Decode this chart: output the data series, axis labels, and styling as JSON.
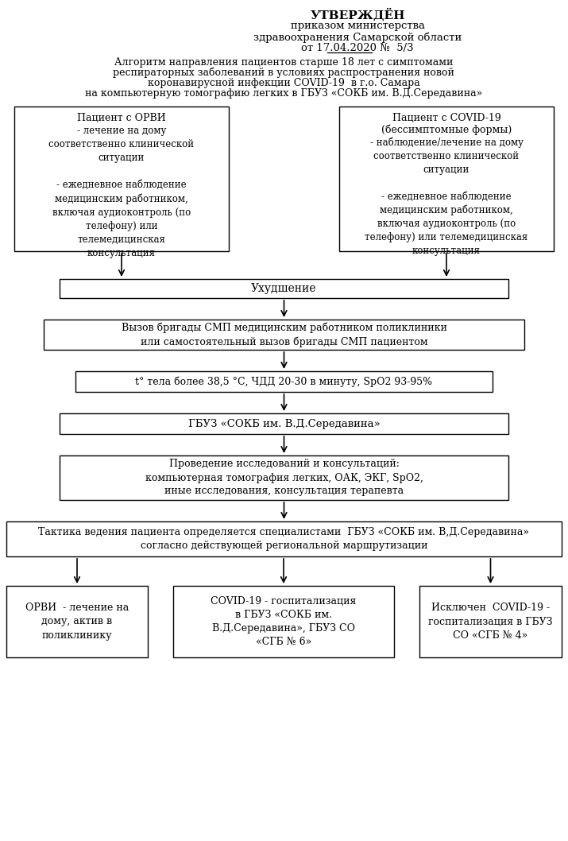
{
  "title_line1": "УТВЕРЖДЁН",
  "title_lines": [
    "приказом министерства",
    "здравоохранения Самарской области",
    "от 17.04.2020 №  5/3"
  ],
  "subtitle_lines": [
    "Алгоритм направления пациентов старше 18 лет с симптомами",
    "респираторных заболеваний в условиях распространения новой",
    "коронавирусной инфекции COVID-19  в г.о. Самара",
    "на компьютерную томографию легких в ГБУЗ «СОКБ им. В.Д.Середавина»"
  ],
  "box_orvi_title": "Пациент с ОРВИ",
  "box_orvi_body": "- лечение на дому\nсоответственно клинической\nситуации\n\n- ежедневное наблюдение\nмедицинским работником,\nвключая аудиоконтроль (по\nтелефону) или\nтелемедицинская\nконсультация",
  "box_covid_title": "Пациент с COVID-19",
  "box_covid_subtitle": "(бессимптомные формы)",
  "box_covid_body": "- наблюдение/лечение на дому\nсоответственно клинической\nситуации\n\n- ежедневное наблюдение\nмедицинским работником,\nвключая аудиоконтроль (по\nтелефону) или телемедицинская\nконсультация",
  "box_uhudshenie": "Ухудшение",
  "box_vyzov": "Вызов бригады СМП медицинским работником поликлиники\nили самостоятельный вызов бригады СМП пациентом",
  "box_temp": "t° тела более 38,5 °С, ЧДД 20-30 в минуту, SpO2 93-95%",
  "box_gbuz": "ГБУЗ «СОКБ им. В.Д.Середавина»",
  "box_issledovan": "Проведение исследований и консультаций:\nкомпьютерная томография легких, ОАК, ЭКГ, SpO2,\nиные исследования, консультация терапевта",
  "box_taktika": "Тактика ведения пациента определяется специалистами  ГБУЗ «СОКБ им. В,Д.Середавина»\nсогласно действующей региональной маршрутизации",
  "box_orvi_out": "ОРВИ  - лечение на\nдому, актив в\nполиклинику",
  "box_covid_out": "COVID-19 - госпитализация\nв ГБУЗ «СОКБ им.\nВ.Д.Середавина», ГБУЗ СО\n«СГБ № 6»",
  "box_exclude": "Исключен  COVID-19 -\nгоспитализация в ГБУЗ\nСО «СГБ № 4»",
  "bg_color": "#ffffff",
  "box_edge_color": "#000000",
  "text_color": "#000000"
}
